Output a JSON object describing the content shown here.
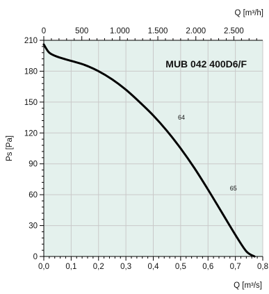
{
  "chart_data": {
    "type": "line",
    "title": "MUB 042 400D6/F",
    "xlabel": "Q [m³/s]",
    "ylabel": "Ps [Pa]",
    "x2label": "Q [m³/h]",
    "xlim": [
      0,
      0.8
    ],
    "ylim": [
      0,
      210
    ],
    "x2lim": [
      0,
      2880
    ],
    "xticks": [
      0.0,
      0.1,
      0.2,
      0.3,
      0.4,
      0.5,
      0.6,
      0.7,
      0.8
    ],
    "xtick_labels": [
      "0,0",
      "0,1",
      "0,2",
      "0,3",
      "0,4",
      "0,5",
      "0,6",
      "0,7",
      "0,8"
    ],
    "yticks": [
      0,
      30,
      60,
      90,
      120,
      150,
      180,
      210
    ],
    "ytick_labels": [
      "0",
      "30",
      "60",
      "90",
      "120",
      "150",
      "180",
      "210"
    ],
    "x2ticks": [
      0,
      500,
      1000,
      1500,
      2000,
      2500
    ],
    "x2tick_labels": [
      "0",
      "500",
      "1.000",
      "1.500",
      "2.000",
      "2.500"
    ],
    "grid": true,
    "background": "#e4f1ed",
    "grid_color": "#c9c9c9",
    "line_color": "#000000",
    "series": [
      {
        "x": [
          0.0,
          0.02,
          0.05,
          0.1,
          0.15,
          0.2,
          0.25,
          0.3,
          0.35,
          0.4,
          0.45,
          0.5,
          0.55,
          0.6,
          0.65,
          0.7,
          0.74,
          0.77
        ],
        "values": [
          206,
          198,
          194,
          190,
          186,
          180,
          172,
          162,
          150,
          137,
          122,
          105,
          86,
          65,
          43,
          21,
          5,
          0
        ]
      }
    ],
    "annotations": [
      {
        "text": "64",
        "x": 0.49,
        "y": 133
      },
      {
        "text": "65",
        "x": 0.68,
        "y": 64
      }
    ]
  }
}
